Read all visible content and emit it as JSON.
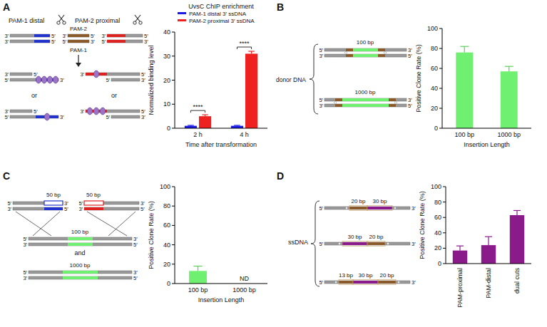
{
  "panels": [
    "A",
    "B",
    "C",
    "D"
  ],
  "chart_data": [
    {
      "type": "bar",
      "title": "UvsC ChIP enrichment",
      "categories": [
        "2 h",
        "4 h"
      ],
      "x_label": "Time after transformation",
      "y_label": "Normalized binding level",
      "series": [
        {
          "name": "PAM-1 distal 3′ ssDNA",
          "color": "#1a1ae6",
          "values": [
            1,
            1
          ],
          "errors": [
            0.2,
            0.2
          ]
        },
        {
          "name": "PAM-2 proximal 3′ ssDNA",
          "color": "#ee2020",
          "values": [
            5,
            31
          ],
          "errors": [
            0.6,
            1
          ]
        }
      ],
      "ylim": [
        0,
        40
      ],
      "yticks": [
        0,
        10,
        20,
        30,
        40
      ],
      "legend": "top-left",
      "annotations": [
        "****",
        "****"
      ]
    },
    {
      "type": "bar",
      "categories": [
        "100 bp",
        "1000 bp"
      ],
      "x_label": "Insertion Length",
      "y_label": "Positive Clone Rate (%)",
      "values": [
        76,
        57
      ],
      "errors": [
        6,
        5
      ],
      "color": "#70f070",
      "ylim": [
        0,
        100
      ],
      "yticks": [
        0,
        20,
        40,
        60,
        80,
        100
      ]
    },
    {
      "type": "bar",
      "categories": [
        "100 bp",
        "1000 bp"
      ],
      "x_label": "Insertion Length",
      "y_label": "Positive Clone Rate (%)",
      "values": [
        13,
        null
      ],
      "errors": [
        5,
        null
      ],
      "color": "#70f070",
      "ylim": [
        0,
        100
      ],
      "yticks": [
        0,
        20,
        40,
        60,
        80,
        100
      ],
      "annotations": [
        null,
        "ND"
      ]
    },
    {
      "type": "bar",
      "categories": [
        "PAM-proximal",
        "PAM-distal",
        "dual cuts"
      ],
      "y_label": "Positive Clone Rate (%)",
      "values": [
        17,
        24,
        63
      ],
      "errors": [
        6,
        11,
        6
      ],
      "color": "#8b1a8b",
      "ylim": [
        0,
        100
      ],
      "yticks": [
        0,
        20,
        40,
        60,
        80,
        100
      ]
    }
  ],
  "diagrams": [
    {
      "labels": [
        "PAM-1 distal",
        "PAM-2 proximal",
        "PAM-2",
        "PAM-1",
        "or",
        "or"
      ],
      "fragments": [
        [
          "3′",
          "5′",
          "3′",
          "5′"
        ],
        [
          "3′",
          "5′",
          "5′",
          "3′"
        ],
        [
          "3′",
          "5′",
          "5′",
          "3′"
        ]
      ],
      "products": [
        [
          "3′",
          "5′",
          "5′",
          "3′"
        ],
        [
          "3′",
          "5′",
          "5′",
          "3′"
        ],
        [
          "3′",
          "5′",
          "5′",
          "3′"
        ],
        [
          "3′",
          "5′",
          "5′",
          "3′"
        ]
      ]
    },
    {
      "labels": [
        "donor DNA",
        "100 bp",
        "1000 bp"
      ],
      "duplexes": [
        [
          "5′",
          "3′",
          "3′",
          "5′"
        ],
        [
          "5′",
          "3′",
          "3′",
          "5′"
        ]
      ]
    },
    {
      "labels": [
        "50 bp",
        "50 bp",
        "100 bp",
        "and",
        "1000 bp"
      ],
      "fragments": [
        [
          "5′",
          "3′",
          "3′",
          "5′"
        ],
        [
          "5′",
          "3′",
          "3′",
          "5′"
        ]
      ],
      "duplexes": [
        [
          "5′",
          "3′",
          "3′",
          "5′"
        ],
        [
          "5′",
          "3′",
          "3′",
          "5′"
        ]
      ]
    },
    {
      "labels": [
        "ssDNA"
      ],
      "strands": [
        {
          "ends": [
            "5′",
            "3′"
          ],
          "segments": [
            {
              "label": "20 bp",
              "color": "#8b5a2b"
            },
            {
              "label": "30 bp",
              "color": "#8b1a8b"
            }
          ]
        },
        {
          "ends": [
            "5′",
            "3′"
          ],
          "segments": [
            {
              "label": "30 bp",
              "color": "#8b1a8b"
            },
            {
              "label": "20 bp",
              "color": "#8b5a2b"
            }
          ]
        },
        {
          "ends": [
            "5′",
            "3′"
          ],
          "segments": [
            {
              "label": "13 bp",
              "color": "#8b5a2b"
            },
            {
              "label": "30 bp",
              "color": "#8b1a8b"
            },
            {
              "label": "20 bp",
              "color": "#8b5a2b"
            }
          ]
        }
      ]
    }
  ]
}
